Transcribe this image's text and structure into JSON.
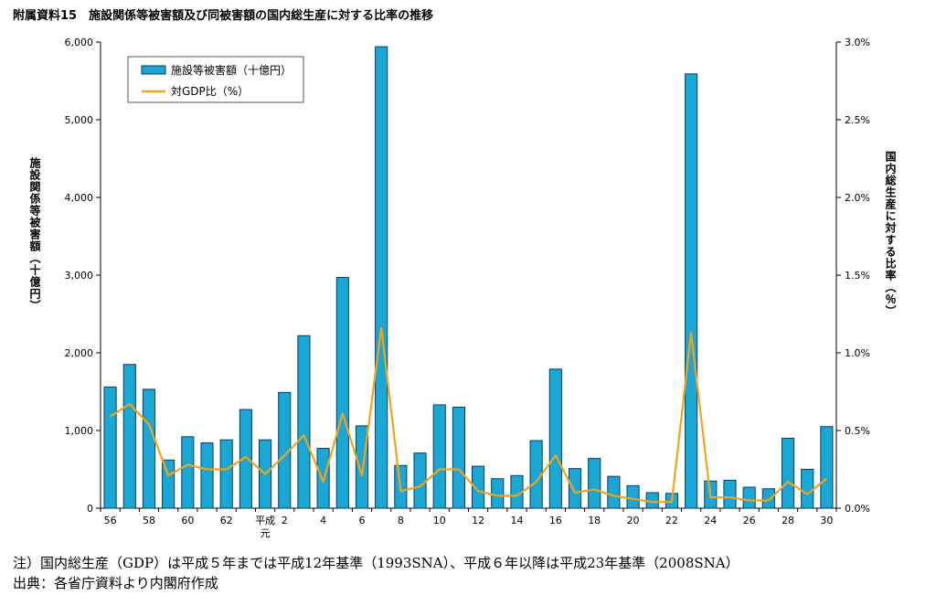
{
  "title": "附属資料15　施設関係等被害額及び同被害額の国内総生産に対する比率の推移",
  "notes": {
    "note1": "注）国内総生産（GDP）は平成５年までは平成12年基準（1993SNA）、平成６年以降は平成23年基準（2008SNA）",
    "note2": "出典：各省庁資料より内閣府作成"
  },
  "chart_data": {
    "type": "bar",
    "categories": [
      "56",
      "57",
      "58",
      "59",
      "60",
      "61",
      "62",
      "63",
      "平成元",
      "2",
      "3",
      "4",
      "5",
      "6",
      "7",
      "8",
      "9",
      "10",
      "11",
      "12",
      "13",
      "14",
      "15",
      "16",
      "17",
      "18",
      "19",
      "20",
      "21",
      "22",
      "23",
      "24",
      "25",
      "26",
      "27",
      "28",
      "29",
      "30"
    ],
    "tick_labels": [
      "56",
      "",
      "58",
      "",
      "60",
      "",
      "62",
      "",
      "平成元",
      "2",
      "",
      "4",
      "",
      "6",
      "",
      "8",
      "",
      "10",
      "",
      "12",
      "",
      "14",
      "",
      "16",
      "",
      "18",
      "",
      "20",
      "",
      "22",
      "",
      "24",
      "",
      "26",
      "",
      "28",
      "",
      "30"
    ],
    "series": [
      {
        "name": "施設等被害額（十億円）",
        "type": "bar",
        "axis": "left",
        "values": [
          1560,
          1850,
          1530,
          620,
          920,
          840,
          880,
          1270,
          880,
          1490,
          2220,
          770,
          2970,
          1060,
          5940,
          550,
          710,
          1330,
          1300,
          540,
          380,
          420,
          870,
          1790,
          510,
          640,
          410,
          290,
          200,
          190,
          5590,
          350,
          360,
          270,
          250,
          900,
          500,
          1050
        ]
      },
      {
        "name": "対GDP比（%）",
        "type": "line",
        "axis": "right",
        "values": [
          0.59,
          0.67,
          0.54,
          0.21,
          0.28,
          0.25,
          0.25,
          0.33,
          0.22,
          0.34,
          0.47,
          0.17,
          0.61,
          0.21,
          1.16,
          0.11,
          0.14,
          0.25,
          0.25,
          0.11,
          0.08,
          0.08,
          0.17,
          0.34,
          0.1,
          0.12,
          0.08,
          0.06,
          0.04,
          0.04,
          1.13,
          0.07,
          0.07,
          0.05,
          0.05,
          0.17,
          0.09,
          0.19
        ]
      }
    ],
    "ylabel": "施設関係等被害額（十億円）",
    "y2label": "国内総生産に対する比率（％）",
    "ylim": [
      0,
      6000
    ],
    "y2lim": [
      0,
      3.0
    ],
    "yticks": [
      "0",
      "1,000",
      "2,000",
      "3,000",
      "4,000",
      "5,000",
      "6,000"
    ],
    "y2ticks": [
      "0.0%",
      "0.5%",
      "1.0%",
      "1.5%",
      "2.0%",
      "2.5%",
      "3.0%"
    ],
    "legend_position": "top-left",
    "grid": false,
    "colors": {
      "bar_fill": "#1aa7d4",
      "bar_stroke": "#0b3a66",
      "line": "#f2a31b",
      "axis": "#000000"
    }
  }
}
